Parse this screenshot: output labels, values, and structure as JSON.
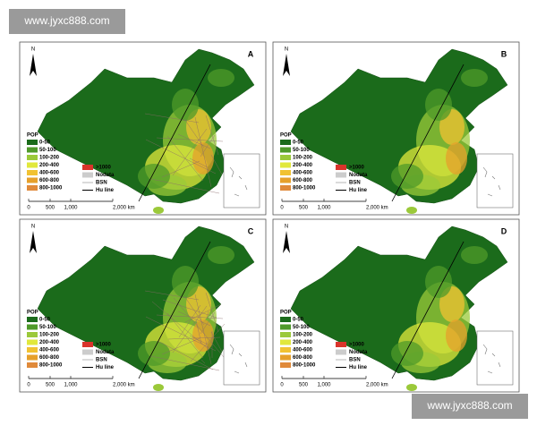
{
  "watermark": "www.jyxc888.com",
  "panels": [
    {
      "label": "A"
    },
    {
      "label": "B"
    },
    {
      "label": "C"
    },
    {
      "label": "D"
    }
  ],
  "north": "N",
  "legend": {
    "title": "POP",
    "items": [
      {
        "label": "0-50",
        "color": "#1b6b1b"
      },
      {
        "label": "50-100",
        "color": "#4f9a2a"
      },
      {
        "label": "100-200",
        "color": "#9bc93a"
      },
      {
        "label": "200-400",
        "color": "#e1e83c"
      },
      {
        "label": "400-600",
        "color": "#f1c232"
      },
      {
        "label": "600-800",
        "color": "#e6a02b"
      },
      {
        "label": "800-1000",
        "color": "#e08a3a"
      }
    ],
    "extra": [
      {
        "label": ">1000",
        "color": "#d9342b"
      },
      {
        "label": "Nodata",
        "color": "#cccccc"
      },
      {
        "label": "BSN",
        "color": "#888888"
      },
      {
        "label": "Hu line",
        "color": "#000000"
      }
    ]
  },
  "scale": [
    "0",
    "500",
    "1,000",
    "2,000 km"
  ]
}
